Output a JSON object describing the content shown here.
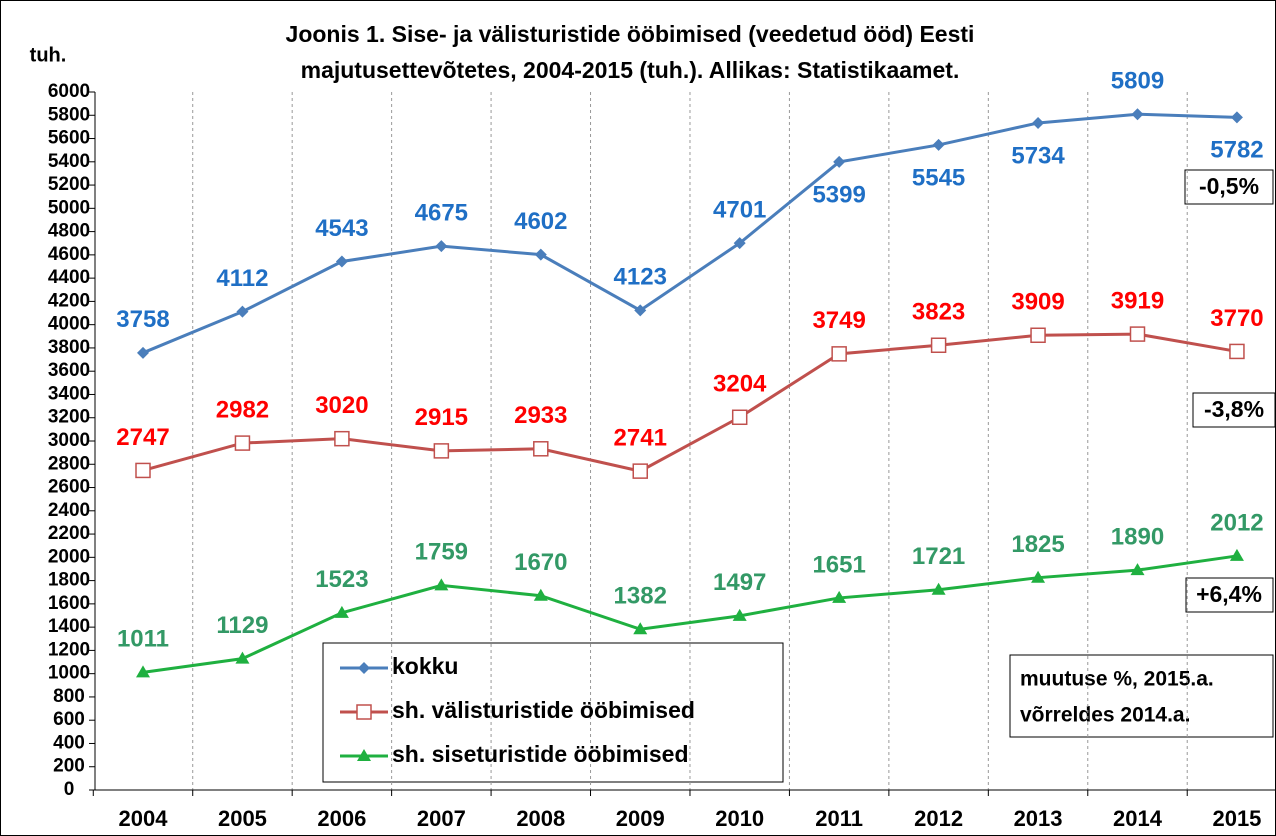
{
  "chart_data": {
    "type": "line",
    "title": [
      "Joonis 1. Sise- ja välisturistide ööbimised (veedetud ööd) Eesti",
      "majutusettevõtetes, 2004-2015 (tuh.).  Allikas: Statistikaamet."
    ],
    "ylabel": "tuh.",
    "categories": [
      "2004",
      "2005",
      "2006",
      "2007",
      "2008",
      "2009",
      "2010",
      "2011",
      "2012",
      "2013",
      "2014",
      "2015"
    ],
    "series": [
      {
        "name": "kokku",
        "color": "#4a7ebb",
        "label_color": "#1f6fc5",
        "marker": "diamond",
        "values": [
          3758,
          4112,
          4543,
          4675,
          4602,
          4123,
          4701,
          5399,
          5545,
          5734,
          5809,
          5782
        ]
      },
      {
        "name": "sh. välisturistide ööbimised",
        "color": "#c0504d",
        "label_color": "#ff0000",
        "marker": "square",
        "values": [
          2747,
          2982,
          3020,
          2915,
          2933,
          2741,
          3204,
          3749,
          3823,
          3909,
          3919,
          3770
        ]
      },
      {
        "name": "sh. siseturistide ööbimised",
        "color": "#1fb040",
        "label_color": "#339966",
        "marker": "triangle",
        "values": [
          1011,
          1129,
          1523,
          1759,
          1670,
          1382,
          1497,
          1651,
          1721,
          1825,
          1890,
          2012
        ]
      }
    ],
    "ylim": [
      0,
      6000
    ],
    "yticks": [
      0,
      200,
      400,
      600,
      800,
      1000,
      1200,
      1400,
      1600,
      1800,
      2000,
      2200,
      2400,
      2600,
      2800,
      3000,
      3200,
      3400,
      3600,
      3800,
      4000,
      4200,
      4400,
      4600,
      4800,
      5000,
      5200,
      5400,
      5600,
      5800,
      6000
    ],
    "annotations": [
      "-0,5%",
      "-3,8%",
      "+6,4%"
    ],
    "note": [
      "muutuse %, 2015.a.",
      "võrreldes  2014.a."
    ]
  }
}
